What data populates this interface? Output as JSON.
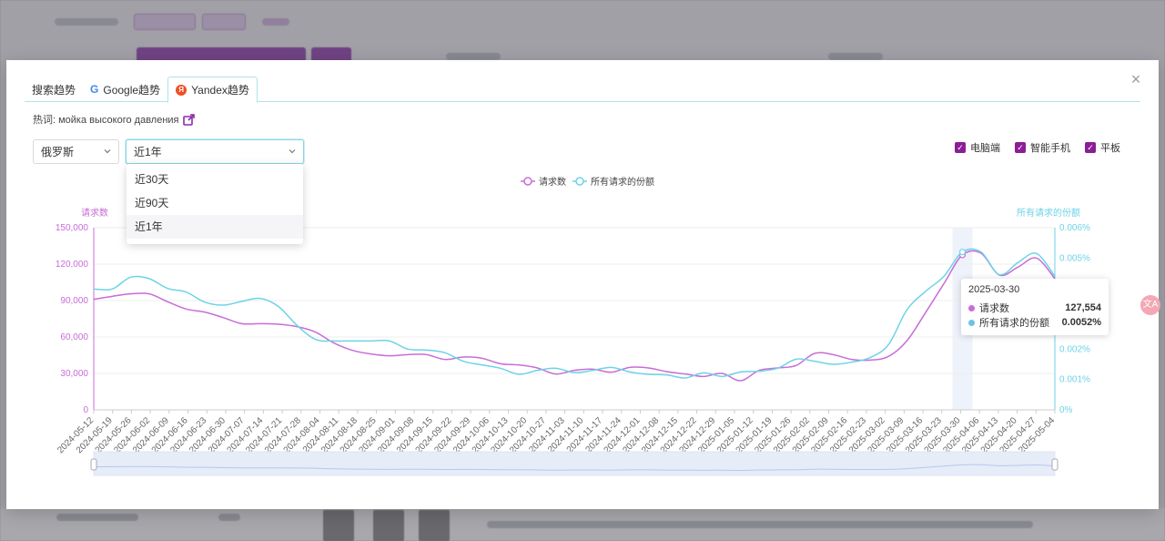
{
  "modal": {
    "close_label": "×",
    "tabs": [
      {
        "label": "搜索趋势",
        "icon": null
      },
      {
        "label": "Google趋势",
        "icon": "google-icon"
      },
      {
        "label": "Yandex趋势",
        "icon": "yandex-icon"
      }
    ],
    "active_tab": 2,
    "keyword_label": "热词: мойка высокого давления",
    "region_select": {
      "value": "俄罗斯"
    },
    "period_select": {
      "value": "近1年",
      "open": true,
      "options": [
        "近30天",
        "近90天",
        "近1年"
      ],
      "selected": "近1年"
    },
    "devices": [
      {
        "label": "电脑端",
        "checked": true
      },
      {
        "label": "智能手机",
        "checked": true
      },
      {
        "label": "平板",
        "checked": true
      }
    ]
  },
  "chart_data": {
    "type": "line",
    "legend": [
      "请求数",
      "所有请求的份额"
    ],
    "legend_position": "top-center",
    "ylabel": "请求数",
    "y2label": "所有请求的份额",
    "ylim": [
      0,
      150000
    ],
    "yticks": [
      "0",
      "30,000",
      "60,000",
      "90,000",
      "120,000",
      "150,000"
    ],
    "y2lim": [
      0,
      0.006
    ],
    "y2ticks": [
      "0%",
      "0.001%",
      "0.002%",
      "0.003%",
      "0.004%",
      "0.005%",
      "0.006%"
    ],
    "grid": true,
    "x_tick_labels": [
      "2024-05-12",
      "2024-05-19",
      "2024-05-26",
      "2024-06-02",
      "2024-06-09",
      "2024-06-16",
      "2024-06-23",
      "2024-06-30",
      "2024-07-07",
      "2024-07-14",
      "2024-07-21",
      "2024-07-28",
      "2024-08-04",
      "2024-08-11",
      "2024-08-18",
      "2024-08-25",
      "2024-09-01",
      "2024-09-08",
      "2024-09-15",
      "2024-09-22",
      "2024-09-29",
      "2024-10-06",
      "2024-10-13",
      "2024-10-20",
      "2024-10-27",
      "2024-11-03",
      "2024-11-10",
      "2024-11-17",
      "2024-11-24",
      "2024-12-01",
      "2024-12-08",
      "2024-12-15",
      "2024-12-22",
      "2024-12-29",
      "2025-01-05",
      "2025-01-12",
      "2025-01-19",
      "2025-01-26",
      "2025-02-02",
      "2025-02-09",
      "2025-02-16",
      "2025-02-23",
      "2025-03-02",
      "2025-03-09",
      "2025-03-16",
      "2025-03-23",
      "2025-03-30",
      "2025-04-06",
      "2025-04-13",
      "2025-04-20",
      "2025-04-27",
      "2025-05-04"
    ],
    "series": [
      {
        "name": "请求数",
        "color": "#c86dd7",
        "axis": "left",
        "values": [
          91000,
          93500,
          95500,
          95500,
          89000,
          83000,
          80500,
          76000,
          71000,
          71000,
          70500,
          68500,
          64000,
          55000,
          49000,
          46000,
          44500,
          45500,
          45500,
          41500,
          43500,
          42500,
          38000,
          37000,
          34500,
          29500,
          32500,
          33500,
          31000,
          35000,
          34500,
          31500,
          29500,
          27500,
          30000,
          24000,
          32500,
          34500,
          36500,
          46500,
          45500,
          41500,
          41000,
          44000,
          57000,
          80000,
          104000,
          127554,
          129000,
          111000,
          117500,
          125000,
          108000
        ],
        "points_count": 53
      },
      {
        "name": "所有请求的份额",
        "color": "#6dd3e6",
        "axis": "right",
        "values": [
          0.00398,
          0.00398,
          0.00437,
          0.00432,
          0.004,
          0.00388,
          0.00355,
          0.00345,
          0.00357,
          0.00367,
          0.0034,
          0.00278,
          0.00232,
          0.00227,
          0.00227,
          0.00227,
          0.00227,
          0.002,
          0.00197,
          0.00188,
          0.0016,
          0.00148,
          0.00137,
          0.00117,
          0.0013,
          0.00137,
          0.00123,
          0.0013,
          0.0014,
          0.00125,
          0.00117,
          0.00115,
          0.00105,
          0.00122,
          0.0011,
          0.00125,
          0.00127,
          0.00137,
          0.00167,
          0.0016,
          0.0015,
          0.00157,
          0.00172,
          0.00215,
          0.0033,
          0.0039,
          0.0044,
          0.0052,
          0.0052,
          0.00445,
          0.00485,
          0.00515,
          0.0044
        ],
        "points_count": 53
      }
    ],
    "highlight_index": 47
  },
  "tooltip": {
    "date": "2025-03-30",
    "rows": [
      {
        "label": "请求数",
        "value": "127,554",
        "color": "#c86dd7"
      },
      {
        "label": "所有请求的份额",
        "value": "0.0052%",
        "color": "#6dd3e6"
      }
    ]
  }
}
